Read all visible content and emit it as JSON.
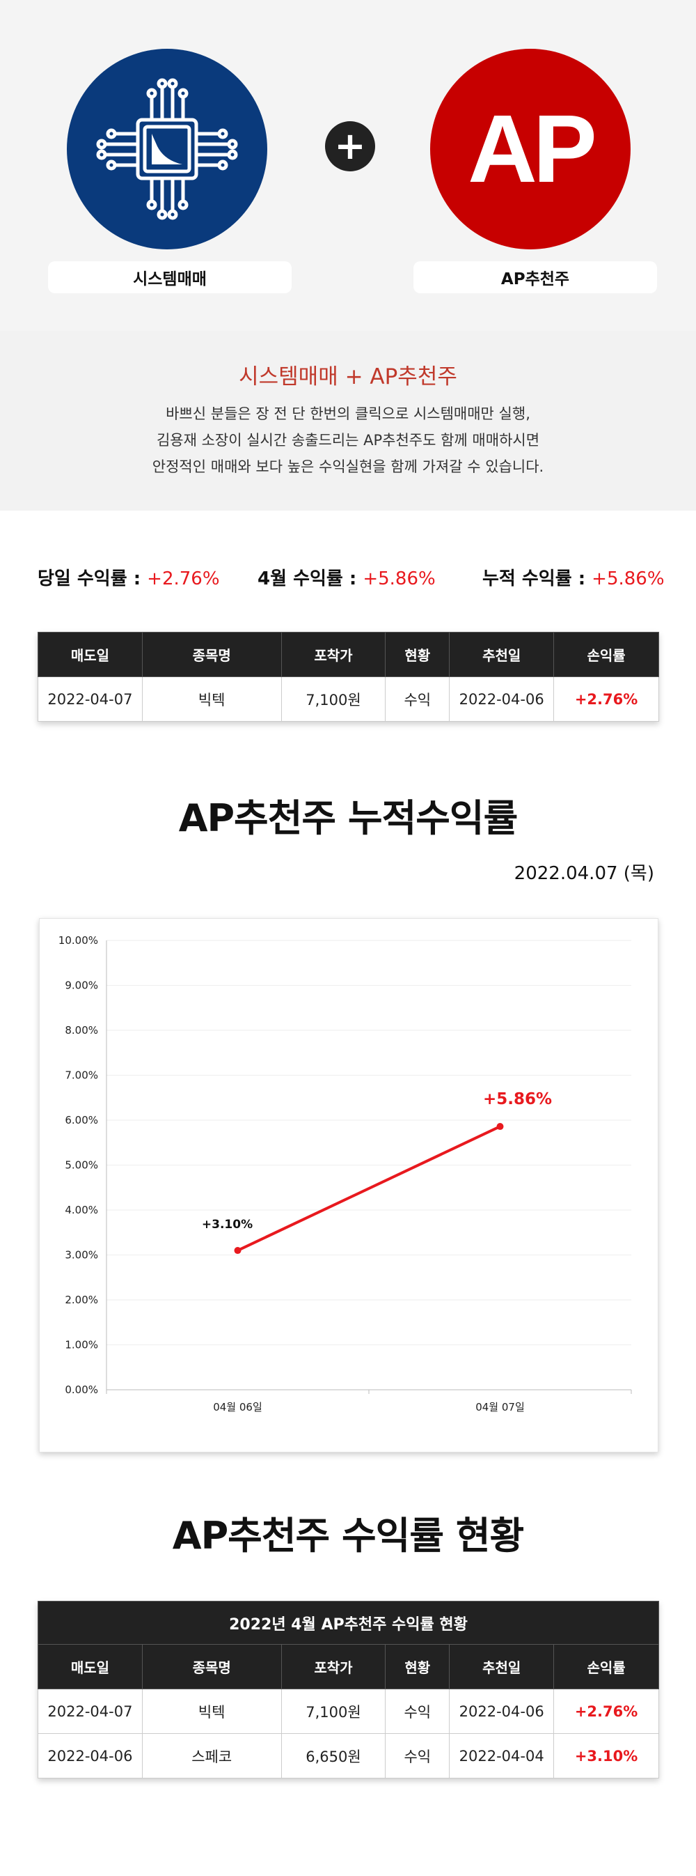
{
  "hero": {
    "left_logo_icon": "chip-chart-icon",
    "left_label": "시스템매매",
    "right_logo_text": "AP",
    "right_label": "AP추천주",
    "plus": "+",
    "colors": {
      "left": "#0a3a7c",
      "right": "#c70000"
    }
  },
  "intro": {
    "title": "시스템매매 + AP추천주",
    "lines": [
      "바쁘신 분들은 장 전 단 한번의 클릭으로 시스템매매만 실행,",
      "김용재 소장이 실시간 송출드리는 AP추천주도 함께 매매하시면",
      "안정적인 매매와 보다 높은 수익실현을 함께 가져갈 수 있습니다."
    ]
  },
  "rates": {
    "daily_label": "당일 수익률 : ",
    "daily_value": "+2.76%",
    "month_label": "4월 수익률 : ",
    "month_value": "+5.86%",
    "cumulative_label": "누적 수익률 : ",
    "cumulative_value": "+5.86%"
  },
  "table_headers": [
    "매도일",
    "종목명",
    "포착가",
    "현황",
    "추천일",
    "손익률"
  ],
  "today_table": {
    "rows": [
      [
        "2022-04-07",
        "빅텍",
        "7,100원",
        "수익",
        "2022-04-06",
        "+2.76%"
      ]
    ]
  },
  "chart_section": {
    "title": "AP추천주 누적수익률",
    "date": "2022.04.07 (목)"
  },
  "chart_data": {
    "type": "line",
    "title": "",
    "xlabel": "",
    "ylabel": "",
    "categories": [
      "04월 06일",
      "04월 07일"
    ],
    "series": [
      {
        "values": [
          3.1,
          5.86
        ],
        "labels": [
          "+3.10%",
          "+5.86%"
        ],
        "color": "#e8191e"
      }
    ],
    "ylim": [
      0,
      10
    ],
    "yticks": [
      "0.00%",
      "1.00%",
      "2.00%",
      "3.00%",
      "4.00%",
      "5.00%",
      "6.00%",
      "7.00%",
      "8.00%",
      "9.00%",
      "10.00%"
    ],
    "grid": true
  },
  "status_section": {
    "title": "AP추천주 수익률 현황",
    "table_caption": "2022년 4월 AP추천주 수익률 현황",
    "rows": [
      [
        "2022-04-07",
        "빅텍",
        "7,100원",
        "수익",
        "2022-04-06",
        "+2.76%"
      ],
      [
        "2022-04-06",
        "스페코",
        "6,650원",
        "수익",
        "2022-04-04",
        "+3.10%"
      ]
    ]
  }
}
